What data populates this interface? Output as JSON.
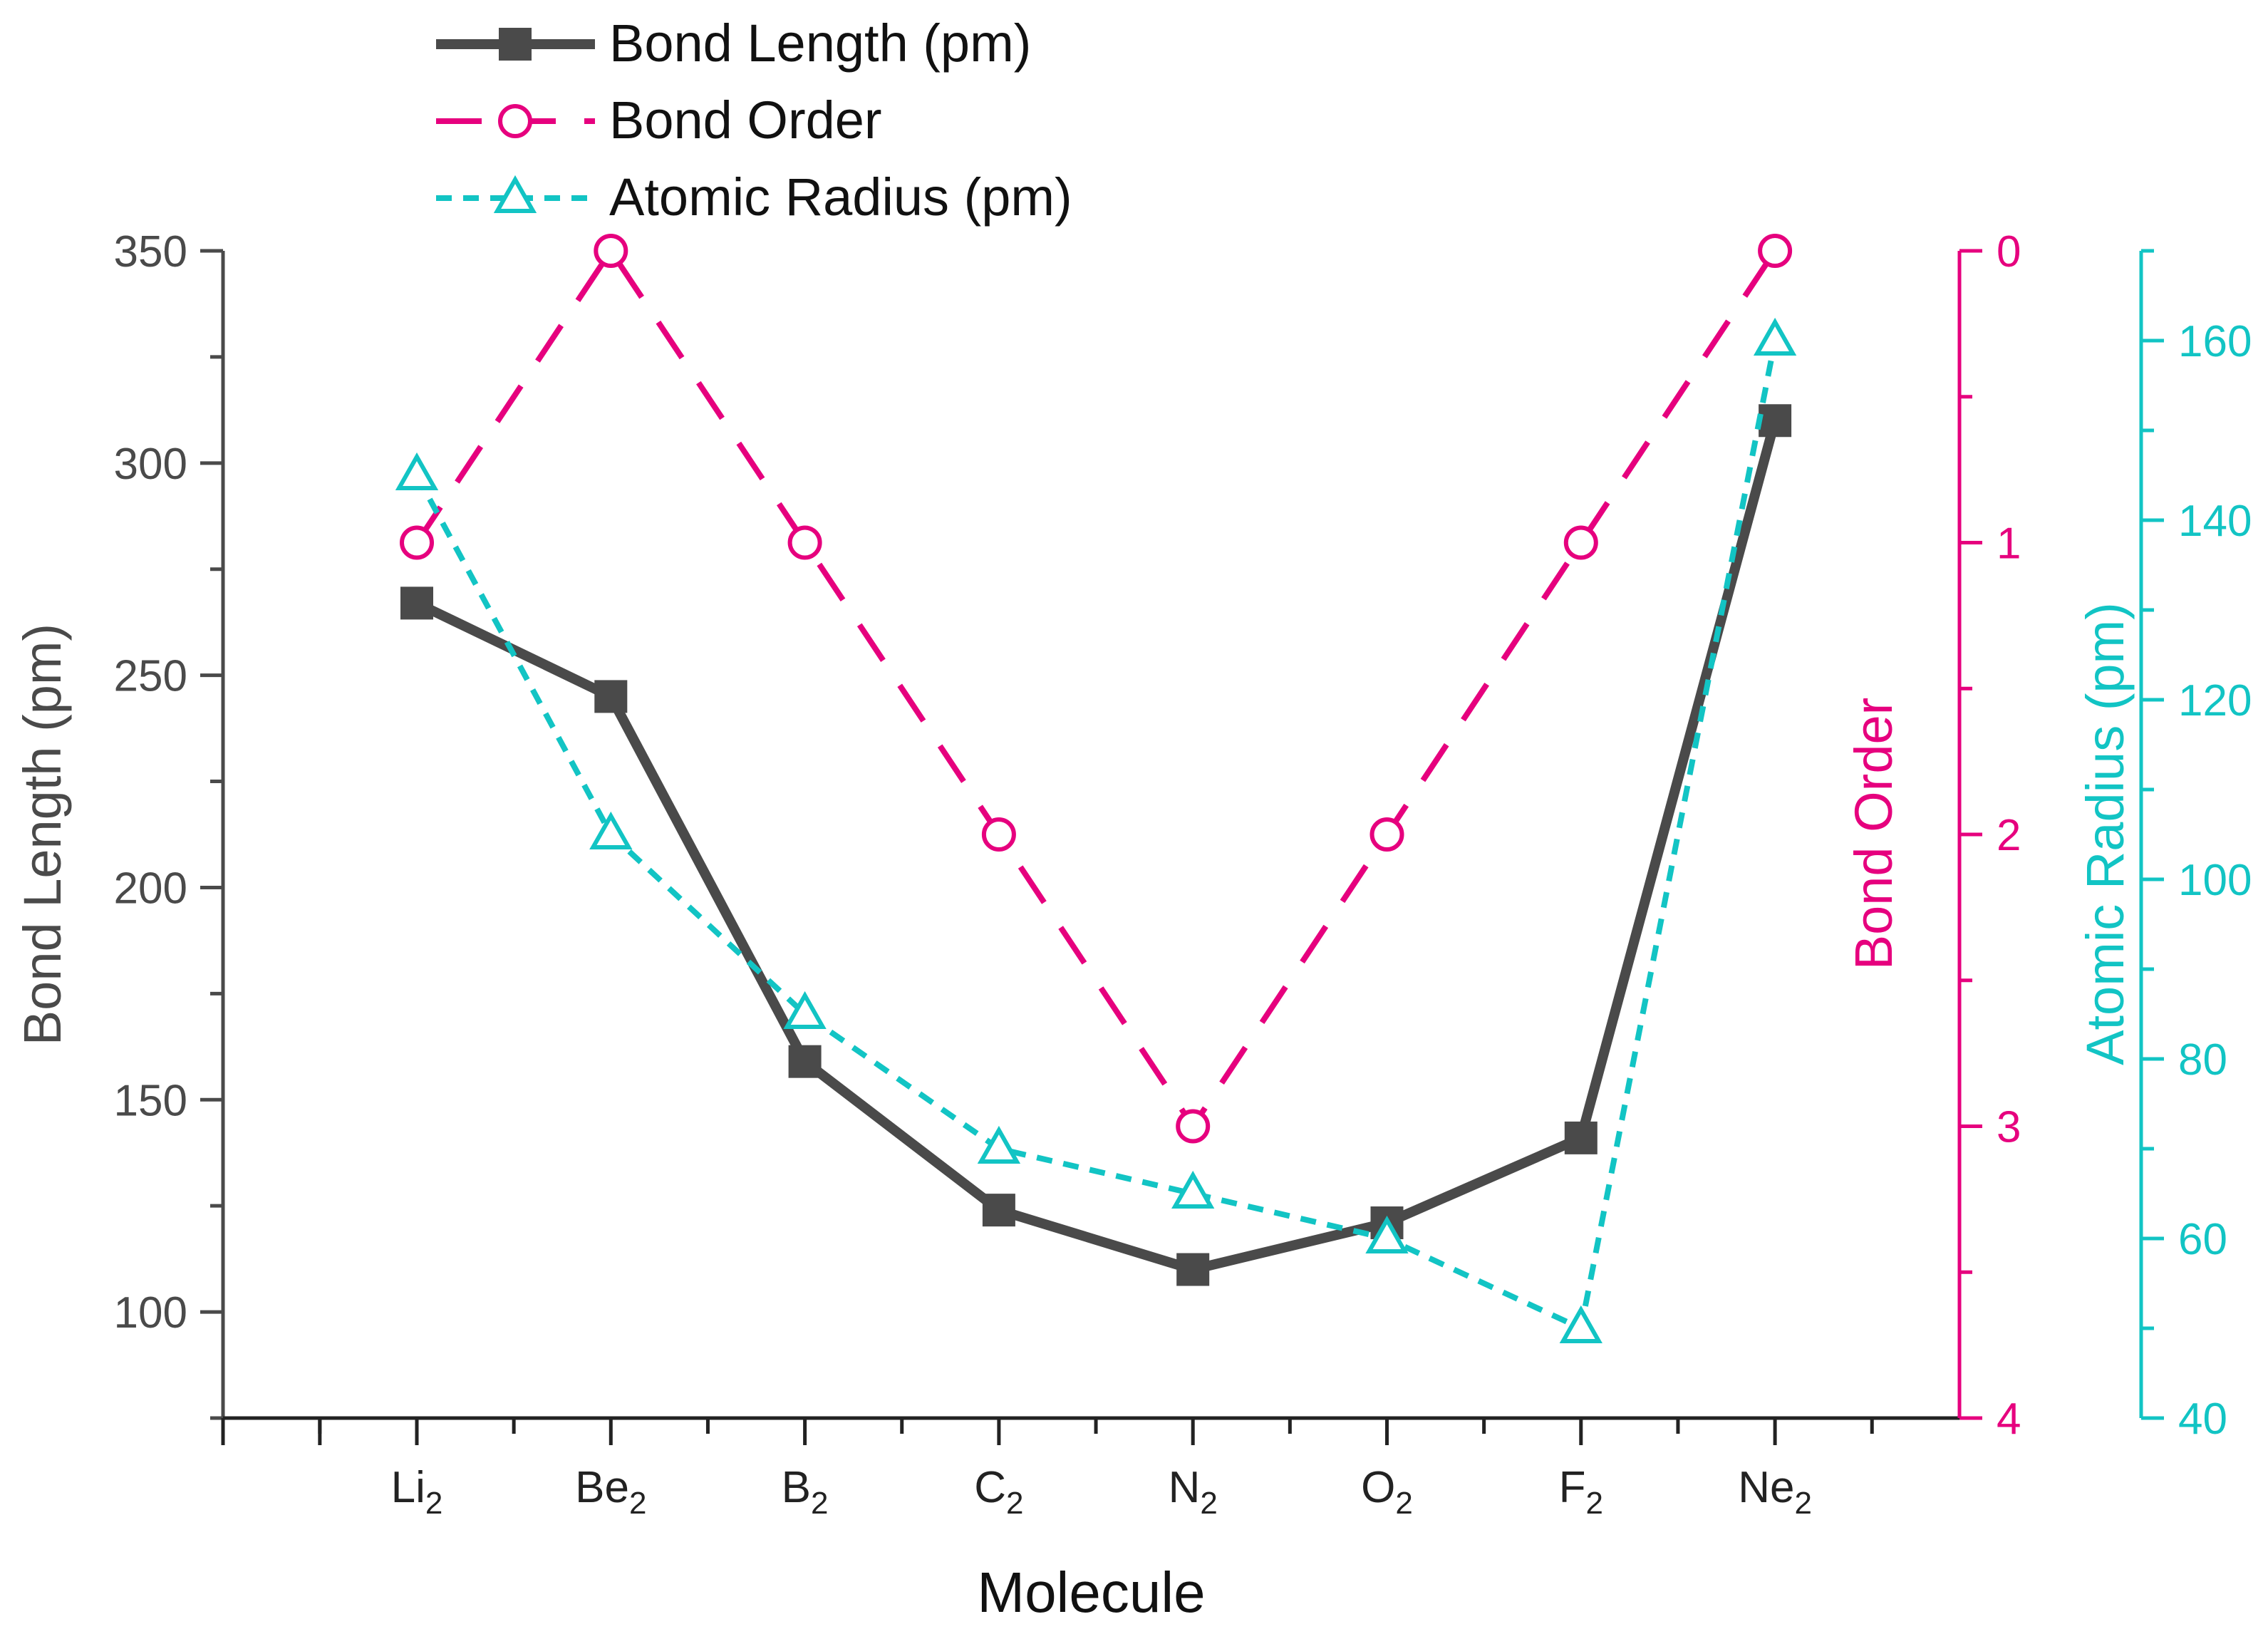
{
  "chart_data": {
    "type": "line",
    "xlabel": "Molecule",
    "categories": [
      {
        "base": "Li",
        "sub": "2"
      },
      {
        "base": "Be",
        "sub": "2"
      },
      {
        "base": "B",
        "sub": "2"
      },
      {
        "base": "C",
        "sub": "2"
      },
      {
        "base": "N",
        "sub": "2"
      },
      {
        "base": "O",
        "sub": "2"
      },
      {
        "base": "F",
        "sub": "2"
      },
      {
        "base": "Ne",
        "sub": "2"
      }
    ],
    "axes": {
      "left": {
        "label": "Bond Length (pm)",
        "range": [
          75,
          350
        ],
        "ticks": [
          100,
          150,
          200,
          250,
          300,
          350
        ],
        "color": "#4a4a4a"
      },
      "right1": {
        "label": "Bond Order",
        "range": [
          0,
          4
        ],
        "inverted": true,
        "ticks": [
          0,
          1,
          2,
          3,
          4
        ],
        "color": "#e6007e"
      },
      "right2": {
        "label": "Atomic Radius (pm)",
        "range": [
          40,
          170
        ],
        "ticks": [
          40,
          60,
          80,
          100,
          120,
          140,
          160
        ],
        "color": "#12c4c4"
      }
    },
    "series": [
      {
        "name": "Bond Length (pm)",
        "axis": "left",
        "values": [
          267,
          245,
          159,
          124,
          110,
          121,
          141,
          310
        ],
        "color": "#4a4a4a",
        "marker": "filled-square",
        "line": "solid"
      },
      {
        "name": "Bond Order",
        "axis": "right1",
        "values": [
          1,
          0,
          1,
          2,
          3,
          2,
          1,
          0
        ],
        "color": "#e6007e",
        "marker": "open-circle",
        "line": "dashed"
      },
      {
        "name": "Atomic Radius (pm)",
        "axis": "right2",
        "values": [
          145,
          105,
          85,
          70,
          65,
          60,
          50,
          160
        ],
        "color": "#12c4c4",
        "marker": "open-triangle",
        "line": "dotted"
      }
    ],
    "legend_position": "top-center",
    "grid": false
  }
}
